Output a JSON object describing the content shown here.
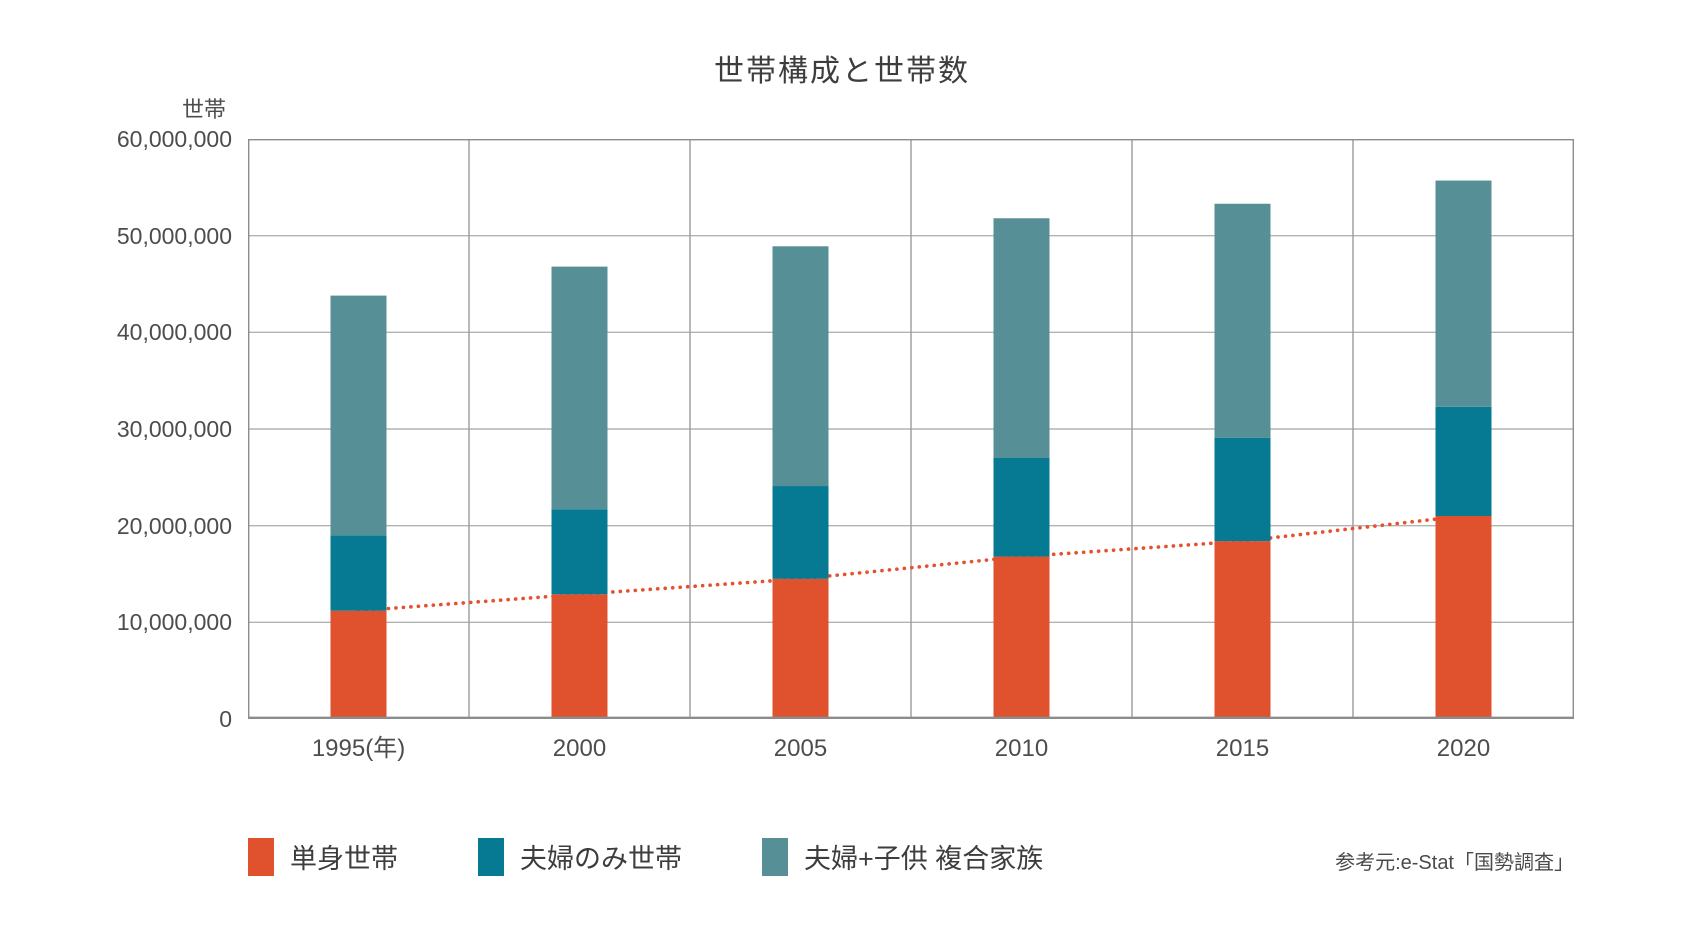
{
  "page": {
    "source": "参考元:e-Stat「国勢調査」"
  },
  "chart_data": {
    "type": "bar",
    "stacked": true,
    "title": "世帯構成と世帯数",
    "unit_label": "世帯",
    "categories": [
      "1995(年)",
      "2000",
      "2005",
      "2010",
      "2015",
      "2020"
    ],
    "series": [
      {
        "name": "単身世帯",
        "color": "#e0512d",
        "values": [
          11200000,
          12900000,
          14500000,
          16800000,
          18400000,
          21000000
        ]
      },
      {
        "name": "夫婦のみ世帯",
        "color": "#077a93",
        "values": [
          7800000,
          8800000,
          9600000,
          10200000,
          10700000,
          11300000
        ]
      },
      {
        "name": "夫婦+子供 複合家族",
        "color": "#578f96",
        "values": [
          24800000,
          25100000,
          24800000,
          24800000,
          24200000,
          23400000
        ]
      }
    ],
    "stack_totals": [
      43800000,
      46800000,
      48900000,
      51800000,
      53300000,
      55700000
    ],
    "trend_line": {
      "follows_series": "単身世帯",
      "style": "dotted",
      "color": "#e4512e",
      "values": [
        11200000,
        12900000,
        14500000,
        16800000,
        18400000,
        21000000
      ]
    },
    "y_axis": {
      "min": 0,
      "max": 60000000,
      "tick_step": 10000000,
      "tick_labels": [
        "0",
        "10,000,000",
        "20,000,000",
        "30,000,000",
        "40,000,000",
        "50,000,000",
        "60,000,000"
      ]
    },
    "grid": true,
    "legend_position": "bottom",
    "colors": {
      "grid_horizontal": "#b3b3b3",
      "grid_vertical": "#9b9b9b",
      "frame": "#8c8c8c",
      "text": "#4d4d4d"
    }
  }
}
